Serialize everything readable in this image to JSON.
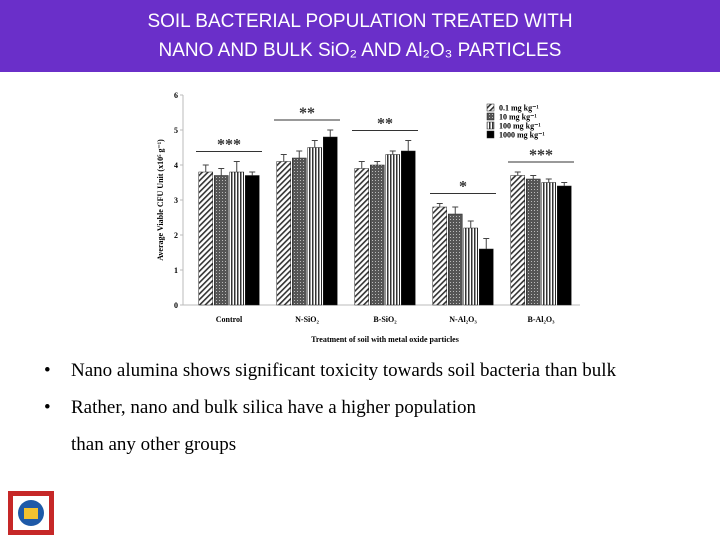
{
  "header": {
    "title": [
      "SOIL BACTERIAL POPULATION TREATED WITH",
      "NANO AND BULK SiO₂ AND Al₂O₃ PARTICLES"
    ]
  },
  "chart_data": {
    "type": "bar",
    "x_label": "Treatment of soil with metal oxide particles",
    "y_label": "Average Viable CFU Unit (x10⁵ g⁻¹)",
    "categories": [
      "Control",
      "N-SiO₂",
      "B-SiO₂",
      "N-Al₂O₃",
      "B-Al₂O₃"
    ],
    "series": [
      {
        "name": "0.1 mg kg⁻¹",
        "color": "#333333",
        "pattern": "diagonal",
        "values": [
          3.8,
          4.1,
          3.9,
          2.8,
          3.7
        ],
        "errors": [
          0.2,
          0.2,
          0.2,
          0.1,
          0.1
        ]
      },
      {
        "name": "10 mg kg⁻¹",
        "color": "#555555",
        "pattern": "dense",
        "values": [
          3.7,
          4.2,
          4.0,
          2.6,
          3.6
        ],
        "errors": [
          0.2,
          0.2,
          0.1,
          0.2,
          0.1
        ]
      },
      {
        "name": "100 mg kg⁻¹",
        "color": "#333333",
        "pattern": "vertical",
        "values": [
          3.8,
          4.5,
          4.3,
          2.2,
          3.5
        ],
        "errors": [
          0.3,
          0.2,
          0.1,
          0.2,
          0.1
        ]
      },
      {
        "name": "1000 mg kg⁻¹",
        "color": "#000000",
        "pattern": "solid",
        "values": [
          3.7,
          4.8,
          4.4,
          1.6,
          3.4
        ],
        "errors": [
          0.1,
          0.2,
          0.3,
          0.3,
          0.1
        ]
      }
    ],
    "annotations": [
      "***",
      "**",
      "**",
      "*",
      "***"
    ],
    "ylim": [
      0,
      6
    ],
    "yticks": [
      0,
      1,
      2,
      3,
      4,
      5,
      6
    ]
  },
  "bullets": [
    [
      "Nano alumina shows significant toxicity towards soil bacteria than bulk"
    ],
    [
      "Rather, nano and bulk silica have a higher population",
      "than  any other groups"
    ]
  ]
}
